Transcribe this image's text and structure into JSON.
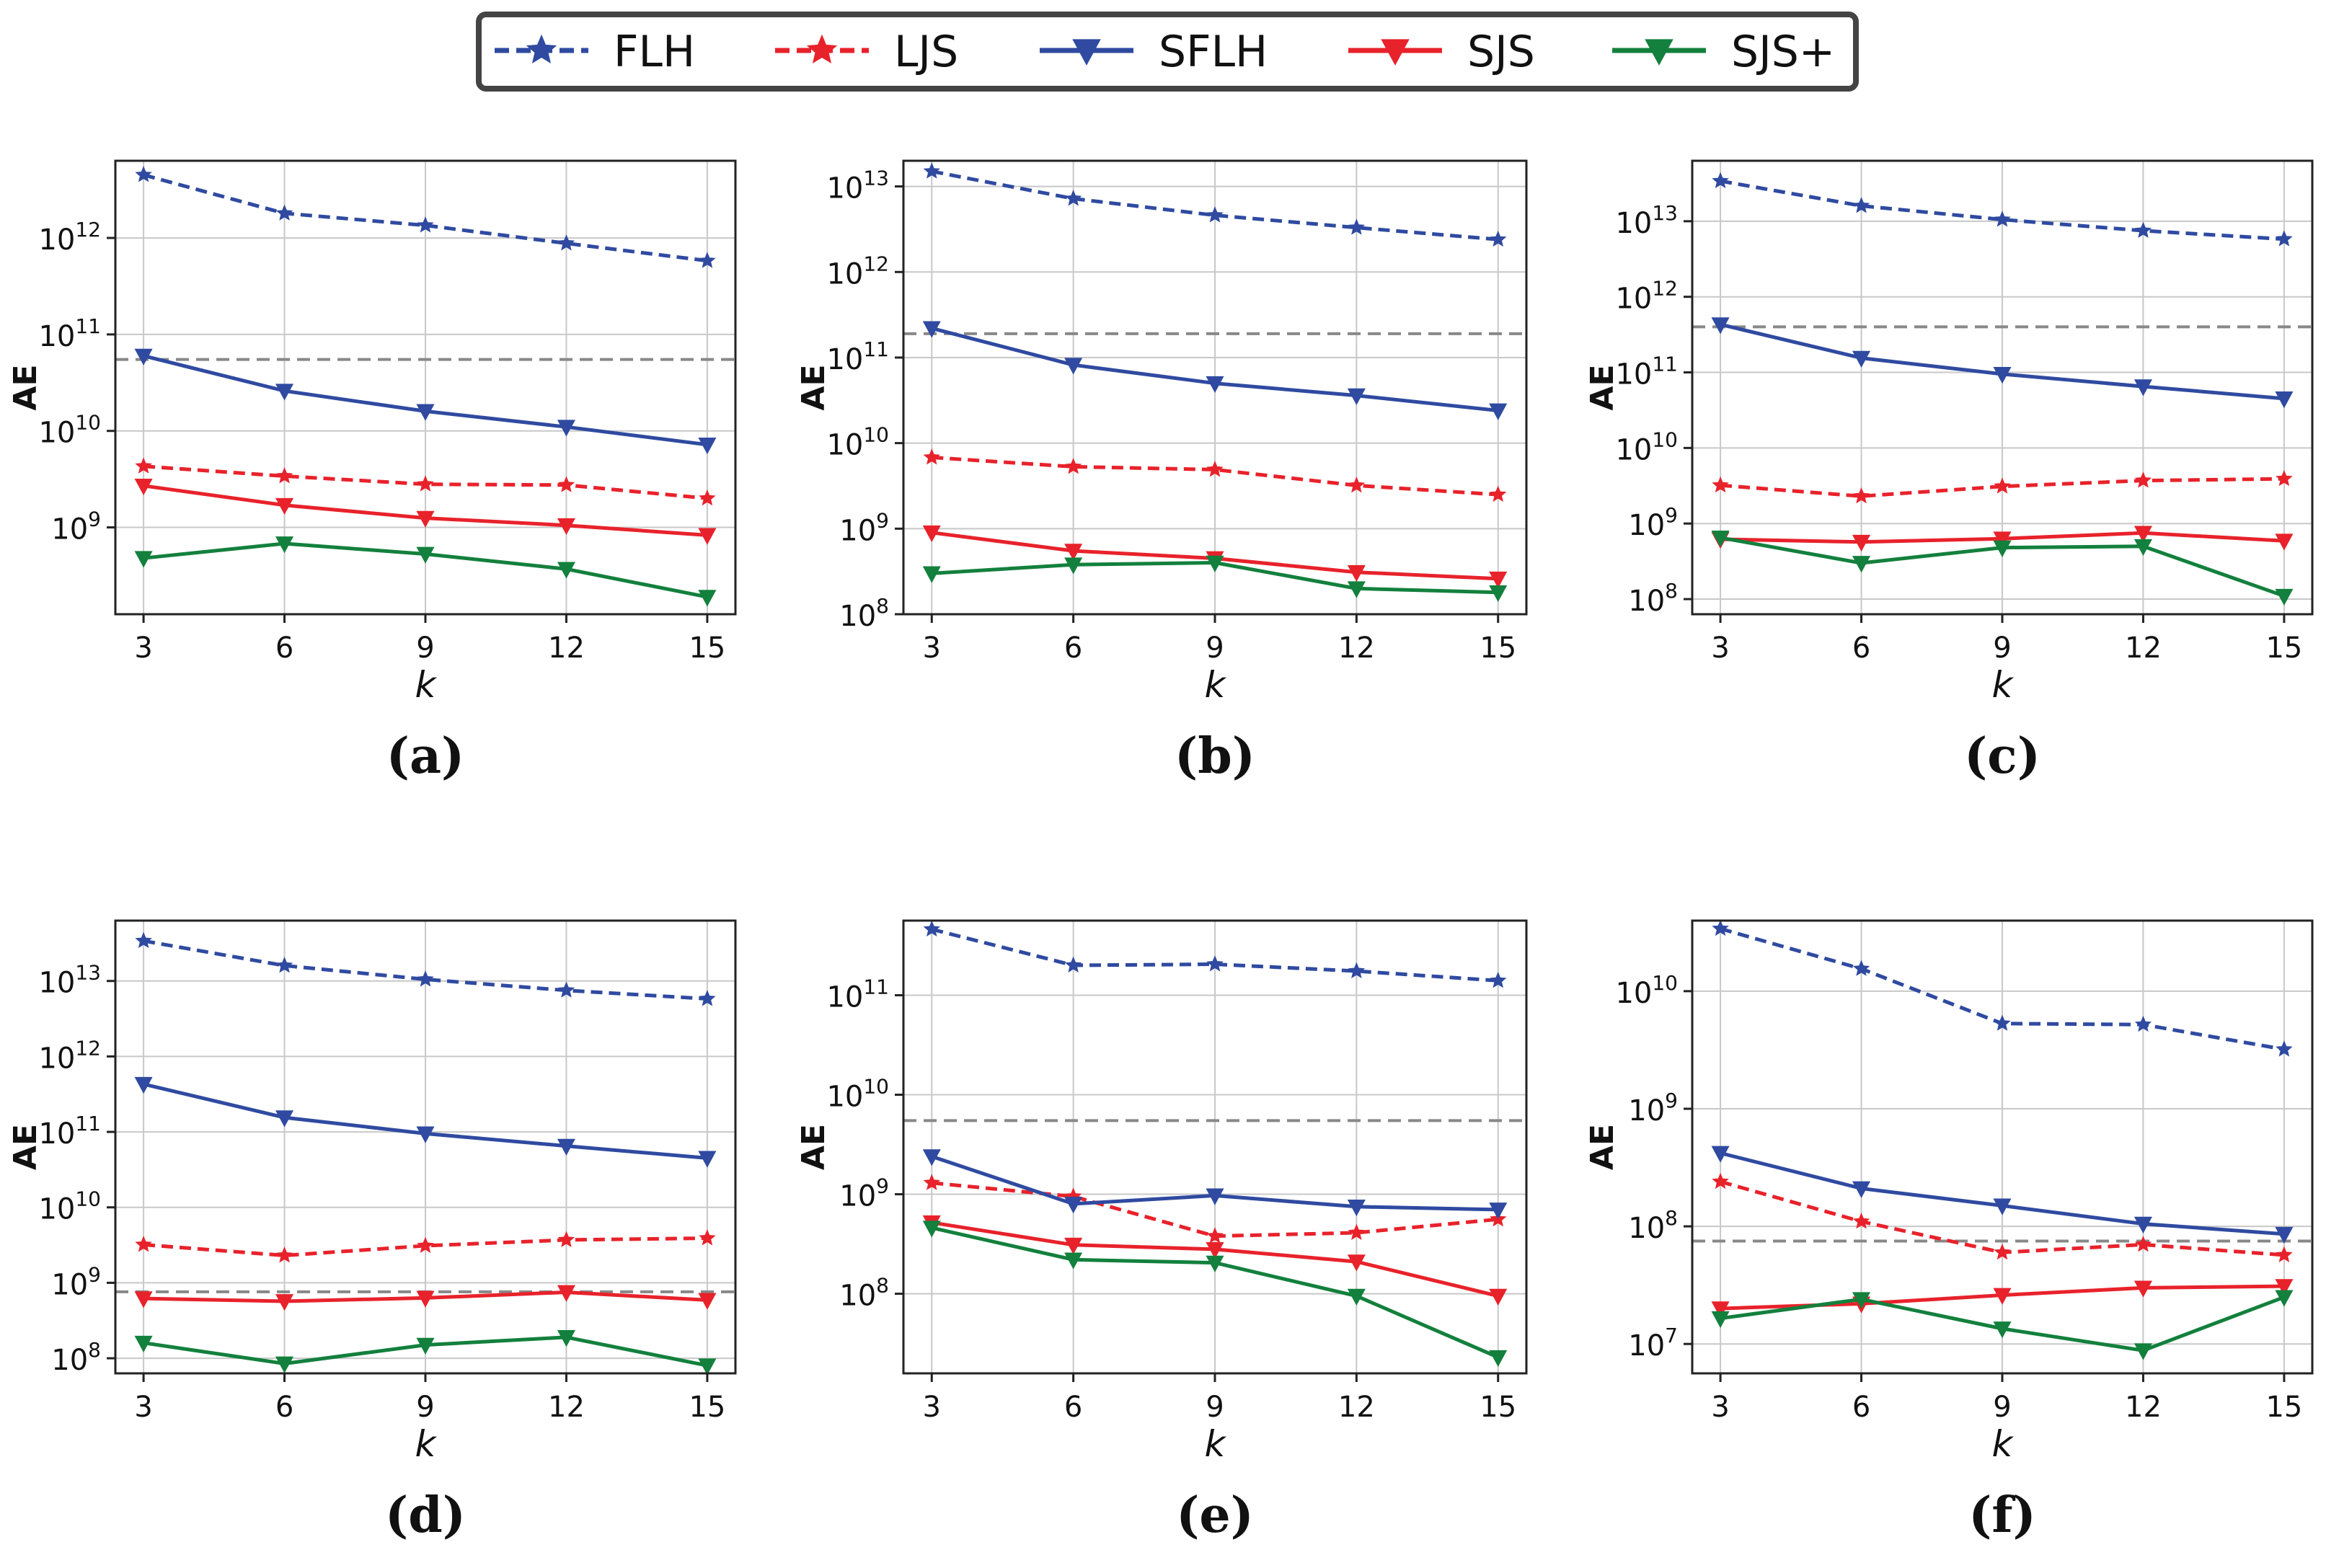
{
  "legend": {
    "location": "top-center",
    "entries": [
      {
        "key": "FLH",
        "label": "FLH",
        "color": "#2f4aa0",
        "line": "dashed",
        "marker": "star"
      },
      {
        "key": "LJS",
        "label": "LJS",
        "color": "#e8222b",
        "line": "dashed",
        "marker": "star"
      },
      {
        "key": "SFLH",
        "label": "SFLH",
        "color": "#2f4aa0",
        "line": "solid",
        "marker": "triangle-down"
      },
      {
        "key": "SJS",
        "label": "SJS",
        "color": "#e8222b",
        "line": "solid",
        "marker": "triangle-down"
      },
      {
        "key": "SJSp",
        "label": "SJS+",
        "color": "#13803d",
        "line": "solid",
        "marker": "triangle-down"
      }
    ]
  },
  "reference_color": "#888888",
  "chart_data": [
    {
      "type": "line",
      "subcaption": "(a)",
      "xlabel": "k",
      "ylabel": "AE",
      "yscale": "log",
      "x": [
        3,
        6,
        9,
        12,
        15
      ],
      "ylim_log10": [
        8.1,
        12.8
      ],
      "yticks_exp": [
        9,
        10,
        11,
        12
      ],
      "reference_line": 55000000000.0,
      "series": [
        {
          "name": "FLH",
          "values": [
            4500000000000.0,
            1800000000000.0,
            1350000000000.0,
            880000000000.0,
            580000000000.0
          ]
        },
        {
          "name": "LJS",
          "values": [
            4300000000.0,
            3400000000.0,
            2800000000.0,
            2750000000.0,
            2000000000.0
          ]
        },
        {
          "name": "SFLH",
          "values": [
            60000000000.0,
            26000000000.0,
            16000000000.0,
            11000000000.0,
            7200000000.0
          ]
        },
        {
          "name": "SJS",
          "values": [
            2700000000.0,
            1700000000.0,
            1250000000.0,
            1050000000.0,
            830000000.0
          ]
        },
        {
          "name": "SJS+",
          "values": [
            480000000.0,
            680000000.0,
            530000000.0,
            370000000.0,
            190000000.0
          ]
        }
      ]
    },
    {
      "type": "line",
      "subcaption": "(b)",
      "xlabel": "k",
      "ylabel": "AE",
      "yscale": "log",
      "x": [
        3,
        6,
        9,
        12,
        15
      ],
      "ylim_log10": [
        8.0,
        13.3
      ],
      "yticks_exp": [
        8,
        9,
        10,
        11,
        12,
        13
      ],
      "reference_line": 190000000000.0,
      "series": [
        {
          "name": "FLH",
          "values": [
            15000000000000.0,
            7200000000000.0,
            4600000000000.0,
            3300000000000.0,
            2400000000000.0
          ]
        },
        {
          "name": "LJS",
          "values": [
            6800000000.0,
            5300000000.0,
            4900000000.0,
            3200000000.0,
            2500000000.0
          ]
        },
        {
          "name": "SFLH",
          "values": [
            220000000000.0,
            82000000000.0,
            50000000000.0,
            36000000000.0,
            24000000000.0
          ]
        },
        {
          "name": "SJS",
          "values": [
            900000000.0,
            550000000.0,
            450000000.0,
            310000000.0,
            260000000.0
          ]
        },
        {
          "name": "SJS+",
          "values": [
            300000000.0,
            380000000.0,
            400000000.0,
            200000000.0,
            180000000.0
          ]
        }
      ]
    },
    {
      "type": "line",
      "subcaption": "(c)",
      "xlabel": "k",
      "ylabel": "AE",
      "yscale": "log",
      "x": [
        3,
        6,
        9,
        12,
        15
      ],
      "ylim_log10": [
        7.8,
        13.8
      ],
      "yticks_exp": [
        8,
        9,
        10,
        11,
        12,
        13
      ],
      "reference_line": 400000000000.0,
      "series": [
        {
          "name": "FLH",
          "values": [
            34000000000000.0,
            16000000000000.0,
            10500000000000.0,
            7500000000000.0,
            5800000000000.0
          ]
        },
        {
          "name": "LJS",
          "values": [
            3200000000.0,
            2300000000.0,
            3100000000.0,
            3700000000.0,
            3900000000.0
          ]
        },
        {
          "name": "SFLH",
          "values": [
            430000000000.0,
            155000000000.0,
            95000000000.0,
            65000000000.0,
            45000000000.0
          ]
        },
        {
          "name": "SJS",
          "values": [
            620000000.0,
            570000000.0,
            630000000.0,
            750000000.0,
            590000000.0
          ]
        },
        {
          "name": "SJS+",
          "values": [
            650000000.0,
            300000000.0,
            480000000.0,
            500000000.0,
            110000000.0
          ]
        }
      ]
    },
    {
      "type": "line",
      "subcaption": "(d)",
      "xlabel": "k",
      "ylabel": "AE",
      "yscale": "log",
      "x": [
        3,
        6,
        9,
        12,
        15
      ],
      "ylim_log10": [
        7.8,
        13.8
      ],
      "yticks_exp": [
        8,
        9,
        10,
        11,
        12,
        13
      ],
      "reference_line": 760000000.0,
      "series": [
        {
          "name": "FLH",
          "values": [
            34000000000000.0,
            16000000000000.0,
            10500000000000.0,
            7500000000000.0,
            5800000000000.0
          ]
        },
        {
          "name": "LJS",
          "values": [
            3200000000.0,
            2300000000.0,
            3100000000.0,
            3700000000.0,
            3900000000.0
          ]
        },
        {
          "name": "SFLH",
          "values": [
            430000000000.0,
            155000000000.0,
            95000000000.0,
            65000000000.0,
            45000000000.0
          ]
        },
        {
          "name": "SJS",
          "values": [
            620000000.0,
            570000000.0,
            630000000.0,
            750000000.0,
            590000000.0
          ]
        },
        {
          "name": "SJS+",
          "values": [
            160000000.0,
            85000000.0,
            150000000.0,
            190000000.0,
            80000000.0
          ]
        }
      ]
    },
    {
      "type": "line",
      "subcaption": "(e)",
      "xlabel": "k",
      "ylabel": "AE",
      "yscale": "log",
      "x": [
        3,
        6,
        9,
        12,
        15
      ],
      "ylim_log10": [
        7.2,
        11.75
      ],
      "yticks_exp": [
        8,
        9,
        10,
        11
      ],
      "reference_line": 5500000000.0,
      "series": [
        {
          "name": "FLH",
          "values": [
            460000000000.0,
            200000000000.0,
            205000000000.0,
            175000000000.0,
            140000000000.0
          ]
        },
        {
          "name": "LJS",
          "values": [
            1300000000.0,
            950000000.0,
            380000000.0,
            410000000.0,
            560000000.0
          ]
        },
        {
          "name": "SFLH",
          "values": [
            2400000000.0,
            800000000.0,
            970000000.0,
            750000000.0,
            700000000.0
          ]
        },
        {
          "name": "SJS",
          "values": [
            520000000.0,
            310000000.0,
            280000000.0,
            210000000.0,
            95000000.0
          ]
        },
        {
          "name": "SJS+",
          "values": [
            460000000.0,
            220000000.0,
            205000000.0,
            95000000.0,
            23000000.0
          ]
        }
      ]
    },
    {
      "type": "line",
      "subcaption": "(f)",
      "xlabel": "k",
      "ylabel": "AE",
      "yscale": "log",
      "x": [
        3,
        6,
        9,
        12,
        15
      ],
      "ylim_log10": [
        6.75,
        10.6
      ],
      "yticks_exp": [
        7,
        8,
        9,
        10
      ],
      "reference_line": 75000000.0,
      "series": [
        {
          "name": "FLH",
          "values": [
            34000000000.0,
            15500000000.0,
            5300000000.0,
            5200000000.0,
            3200000000.0
          ]
        },
        {
          "name": "LJS",
          "values": [
            240000000.0,
            110000000.0,
            60000000.0,
            70000000.0,
            57000000.0
          ]
        },
        {
          "name": "SFLH",
          "values": [
            420000000.0,
            210000000.0,
            150000000.0,
            105000000.0,
            86000000.0
          ]
        },
        {
          "name": "SJS",
          "values": [
            20000000.0,
            22000000.0,
            26000000.0,
            30000000.0,
            31000000.0
          ]
        },
        {
          "name": "SJS+",
          "values": [
            16500000.0,
            24000000.0,
            13500000.0,
            8800000.0,
            25000000.0
          ]
        }
      ]
    }
  ]
}
